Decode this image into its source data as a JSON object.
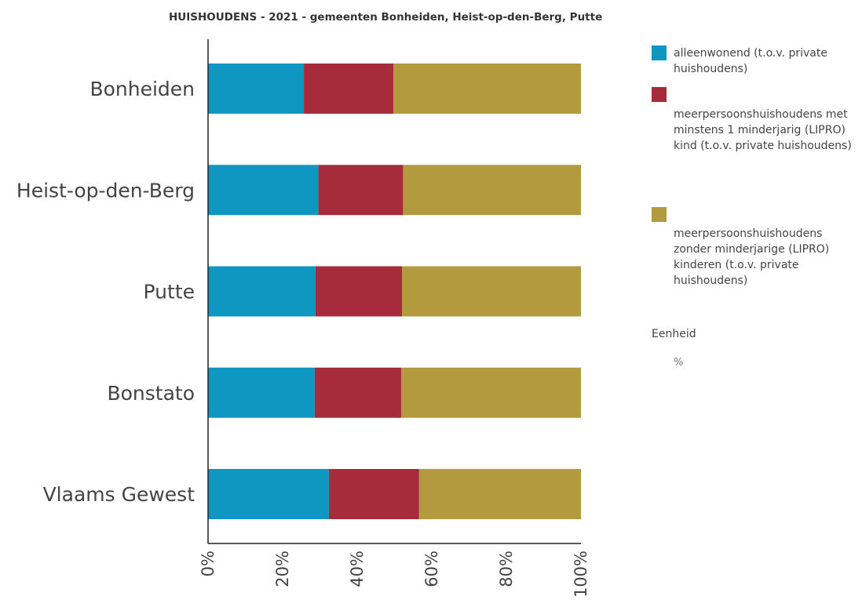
{
  "chart_data": {
    "type": "bar",
    "orientation": "horizontal",
    "stacked": true,
    "title": "HUISHOUDENS - 2021 - gemeenten Bonheiden, Heist-op-den-Berg, Putte",
    "categories": [
      "Bonheiden",
      "Heist-op-den-Berg",
      "Putte",
      "Bonstato",
      "Vlaams Gewest"
    ],
    "series": [
      {
        "name": "alleenwonend (t.o.v. private huishoudens)",
        "color": "#0e97c0",
        "values": [
          25.7,
          29.6,
          28.8,
          28.6,
          32.4
        ]
      },
      {
        "name": "meerpersoonshuishoudens met minstens 1 minderjarig (LIPRO) kind (t.o.v. private huishoudens)",
        "color": "#a62b3b",
        "values": [
          24.0,
          22.7,
          23.2,
          23.2,
          24.2
        ]
      },
      {
        "name": "meerpersoonshuishoudens zonder minderjarige (LIPRO) kinderen (t.o.v. private huishoudens)",
        "color": "#b49a3f",
        "values": [
          50.3,
          47.7,
          48.0,
          48.2,
          43.4
        ]
      }
    ],
    "x_ticks": [
      "0%",
      "20%",
      "40%",
      "60%",
      "80%",
      "100%"
    ],
    "xlim": [
      0,
      100
    ],
    "grid": false,
    "legend_position": "right"
  },
  "legend": {
    "unit_label": "Eenheid",
    "unit_value": "%"
  }
}
